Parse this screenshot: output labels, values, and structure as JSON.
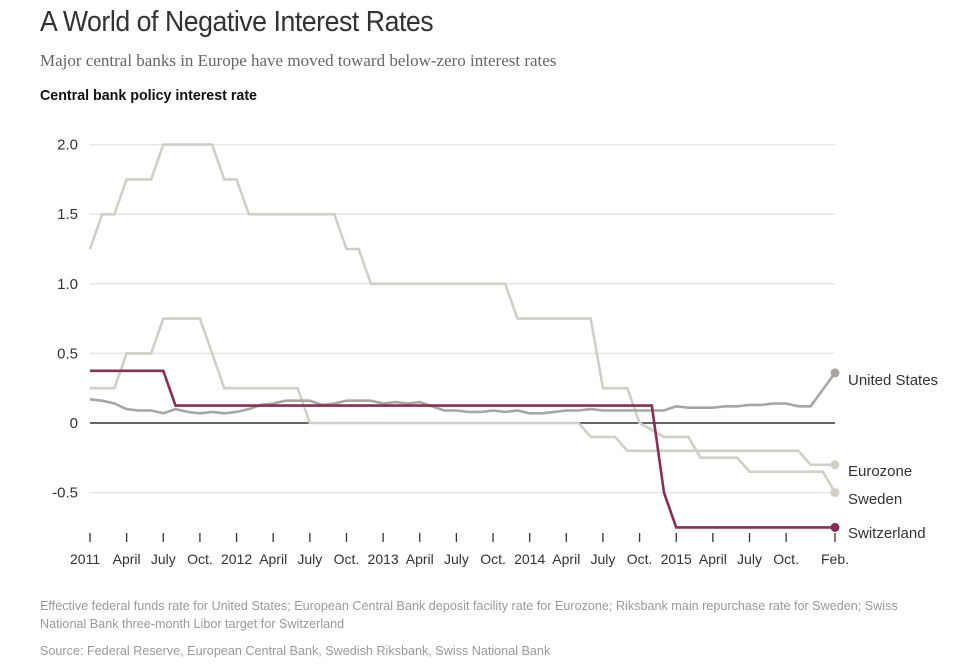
{
  "header": {
    "title": "A World of Negative Interest Rates",
    "subtitle": "Major central banks in Europe have moved toward below-zero interest rates",
    "chart_label": "Central bank policy interest rate"
  },
  "footer": {
    "note": "Effective federal funds rate for United States; European Central Bank deposit facility rate for Eurozone; Riksbank main repurchase rate for Sweden; Swiss National Bank three-month Libor target for Switzerland",
    "source": "Source: Federal Reserve, European Central Bank, Swedish Riksbank, Swiss National Bank"
  },
  "colors": {
    "switzerland": "#862f55",
    "united_states": "#a8a5a2",
    "eurozone": "#d0cec6",
    "sweden": "#d0cec6",
    "zero_line": "#333333",
    "grid": "#e6e6e6"
  },
  "chart_data": {
    "type": "line",
    "title": "A World of Negative Interest Rates",
    "subtitle": "Major central banks in Europe have moved toward below-zero interest rates",
    "ylabel": "Central bank policy interest rate",
    "xlabel": "",
    "x_unit": "months since Jan. 2011",
    "xlim": [
      0,
      61
    ],
    "ylim": [
      -0.8,
      2.1
    ],
    "grid": true,
    "legend": "direct labels at right end of lines",
    "yticks": [
      {
        "value": 2.0,
        "label": "2.0"
      },
      {
        "value": 1.5,
        "label": "1.5"
      },
      {
        "value": 1.0,
        "label": "1.0"
      },
      {
        "value": 0.5,
        "label": "0.5"
      },
      {
        "value": 0,
        "label": "0"
      },
      {
        "value": -0.5,
        "label": "-0.5"
      }
    ],
    "xticks": [
      {
        "month": 0,
        "label": "2011",
        "bold": true
      },
      {
        "month": 3,
        "label": "April"
      },
      {
        "month": 6,
        "label": "July"
      },
      {
        "month": 9,
        "label": "Oct."
      },
      {
        "month": 12,
        "label": "2012",
        "bold": true
      },
      {
        "month": 15,
        "label": "April"
      },
      {
        "month": 18,
        "label": "July"
      },
      {
        "month": 21,
        "label": "Oct."
      },
      {
        "month": 24,
        "label": "2013",
        "bold": true
      },
      {
        "month": 27,
        "label": "April"
      },
      {
        "month": 30,
        "label": "July"
      },
      {
        "month": 33,
        "label": "Oct."
      },
      {
        "month": 36,
        "label": "2014",
        "bold": true
      },
      {
        "month": 39,
        "label": "April"
      },
      {
        "month": 42,
        "label": "July"
      },
      {
        "month": 45,
        "label": "Oct."
      },
      {
        "month": 48,
        "label": "2015",
        "bold": true
      },
      {
        "month": 51,
        "label": "April"
      },
      {
        "month": 54,
        "label": "July"
      },
      {
        "month": 57,
        "label": "Oct."
      },
      {
        "month": 61,
        "label": "Feb."
      }
    ],
    "series": [
      {
        "name": "Sweden",
        "key": "sweden",
        "x": [
          0,
          1,
          2,
          3,
          5,
          6,
          10,
          11,
          12,
          13,
          20,
          21,
          22,
          23,
          34,
          35,
          41,
          42,
          44,
          45,
          47,
          49,
          50,
          53,
          54,
          60,
          61
        ],
        "y": [
          1.25,
          1.5,
          1.5,
          1.75,
          1.75,
          2.0,
          2.0,
          1.75,
          1.75,
          1.5,
          1.5,
          1.25,
          1.25,
          1.0,
          1.0,
          0.75,
          0.75,
          0.25,
          0.25,
          0.0,
          -0.1,
          -0.1,
          -0.25,
          -0.25,
          -0.35,
          -0.35,
          -0.5
        ],
        "end_label": "Sweden"
      },
      {
        "name": "Eurozone",
        "key": "eurozone",
        "x": [
          0,
          2,
          3,
          5,
          6,
          9,
          11,
          17,
          18,
          40,
          41,
          43,
          44,
          58,
          59,
          61
        ],
        "y": [
          0.25,
          0.25,
          0.5,
          0.5,
          0.75,
          0.75,
          0.25,
          0.25,
          0.0,
          0.0,
          -0.1,
          -0.1,
          -0.2,
          -0.2,
          -0.3,
          -0.3
        ],
        "end_label": "Eurozone"
      },
      {
        "name": "United States",
        "key": "united_states",
        "x": [
          0,
          1,
          2,
          3,
          4,
          5,
          6,
          7,
          8,
          9,
          10,
          11,
          12,
          13,
          14,
          15,
          16,
          17,
          18,
          19,
          20,
          21,
          22,
          23,
          24,
          25,
          26,
          27,
          28,
          29,
          30,
          31,
          32,
          33,
          34,
          35,
          36,
          37,
          38,
          39,
          40,
          41,
          42,
          43,
          44,
          45,
          46,
          47,
          48,
          49,
          50,
          51,
          52,
          53,
          54,
          55,
          56,
          57,
          58,
          59,
          60,
          61
        ],
        "y": [
          0.17,
          0.16,
          0.14,
          0.1,
          0.09,
          0.09,
          0.07,
          0.1,
          0.08,
          0.07,
          0.08,
          0.07,
          0.08,
          0.1,
          0.13,
          0.14,
          0.16,
          0.16,
          0.16,
          0.13,
          0.14,
          0.16,
          0.16,
          0.16,
          0.14,
          0.15,
          0.14,
          0.15,
          0.12,
          0.09,
          0.09,
          0.08,
          0.08,
          0.09,
          0.08,
          0.09,
          0.07,
          0.07,
          0.08,
          0.09,
          0.09,
          0.1,
          0.09,
          0.09,
          0.09,
          0.09,
          0.09,
          0.09,
          0.12,
          0.11,
          0.11,
          0.11,
          0.12,
          0.12,
          0.13,
          0.13,
          0.14,
          0.14,
          0.12,
          0.12,
          0.24,
          0.36
        ],
        "end_label": "United States"
      },
      {
        "name": "Switzerland",
        "key": "switzerland",
        "x": [
          0,
          6,
          7,
          46,
          47,
          48,
          61
        ],
        "y": [
          0.375,
          0.375,
          0.125,
          0.125,
          -0.5,
          -0.75,
          -0.75
        ],
        "end_label": "Switzerland"
      }
    ]
  }
}
